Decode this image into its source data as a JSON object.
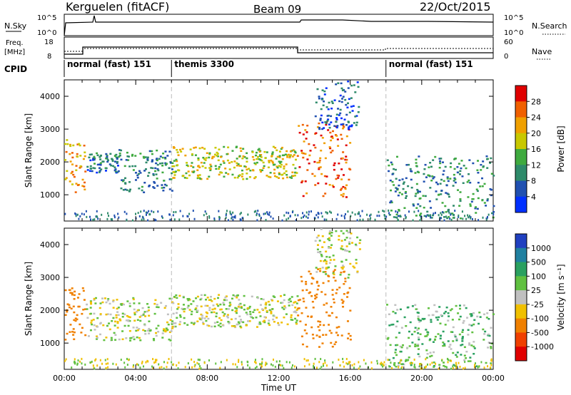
{
  "header": {
    "station": "Kerguelen (fitACF)",
    "beam": "Beam 09",
    "date": "22/Oct/2015"
  },
  "panel_labels": {
    "nsky": "N.Sky",
    "nsearch": "N.Search",
    "freq": "Freq.",
    "freq_unit": "[MHz]",
    "nave": "Nave",
    "cpid": "CPID"
  },
  "nsky_axis": {
    "ticks_left": [
      "10^5",
      "10^0"
    ],
    "ticks_right": [
      "10^5",
      "10^0"
    ]
  },
  "freq_axis": {
    "ticks_left": [
      "18",
      "8"
    ],
    "ticks_right": [
      "60",
      "0"
    ]
  },
  "cpid_segments": [
    {
      "label": "normal (fast) 151",
      "start_hour": 0,
      "end_hour": 6
    },
    {
      "label": "themis 3300",
      "start_hour": 6,
      "end_hour": 18
    },
    {
      "label": "normal (fast) 151",
      "start_hour": 18,
      "end_hour": 24
    }
  ],
  "chart_data": [
    {
      "type": "heatmap",
      "id": "power",
      "ylabel": "Slant Range [km]",
      "yticks": [
        1000,
        2000,
        3000,
        4000
      ],
      "ylim": [
        200,
        4500
      ],
      "colorbar_label": "Power [dB]",
      "colorbar_ticks": [
        "4",
        "8",
        "12",
        "16",
        "20",
        "24",
        "28"
      ],
      "colorbar_range": [
        0,
        30
      ],
      "colors": [
        "#0030ff",
        "#2050b0",
        "#2e8a6a",
        "#3faa3f",
        "#c8c800",
        "#f0a000",
        "#f06000",
        "#e00000"
      ],
      "regions": [
        {
          "t": [
            0.0,
            1.2
          ],
          "r": [
            1100,
            2700
          ],
          "level": 22
        },
        {
          "t": [
            1.2,
            3.0
          ],
          "r": [
            1700,
            2300
          ],
          "level": 8
        },
        {
          "t": [
            3.0,
            6.0
          ],
          "r": [
            1100,
            2400
          ],
          "level": 10
        },
        {
          "t": [
            6.0,
            13.0
          ],
          "r": [
            1500,
            2500
          ],
          "level": 18
        },
        {
          "t": [
            13.0,
            16.0
          ],
          "r": [
            900,
            3300
          ],
          "level": 26
        },
        {
          "t": [
            14.0,
            16.5
          ],
          "r": [
            3000,
            4500
          ],
          "level": 6
        },
        {
          "t": [
            18.0,
            24.0
          ],
          "r": [
            300,
            2200
          ],
          "level": 10
        }
      ]
    },
    {
      "type": "heatmap",
      "id": "velocity",
      "ylabel": "Slant Range [km]",
      "yticks": [
        1000,
        2000,
        3000,
        4000
      ],
      "ylim": [
        200,
        4500
      ],
      "colorbar_label": "Velocity [m s⁻¹]",
      "colorbar_ticks": [
        "1000",
        "500",
        "100",
        "25",
        "-25",
        "-100",
        "-500",
        "-1000"
      ],
      "colors": [
        "#2040c0",
        "#2080a0",
        "#2aa060",
        "#60c040",
        "#c0c0c0",
        "#f0c000",
        "#f08000",
        "#f04000",
        "#e00000"
      ],
      "regions": [
        {
          "t": [
            0.0,
            1.2
          ],
          "r": [
            1100,
            2700
          ],
          "level": -200
        },
        {
          "t": [
            1.2,
            6.0
          ],
          "r": [
            1100,
            2400
          ],
          "level": 0
        },
        {
          "t": [
            6.0,
            13.0
          ],
          "r": [
            1500,
            2500
          ],
          "level": 0
        },
        {
          "t": [
            13.0,
            16.0
          ],
          "r": [
            900,
            3300
          ],
          "level": -300
        },
        {
          "t": [
            14.0,
            16.5
          ],
          "r": [
            3000,
            4500
          ],
          "level": 0
        },
        {
          "t": [
            18.0,
            24.0
          ],
          "r": [
            300,
            2200
          ],
          "level": 80
        }
      ],
      "xlabel": "Time UT",
      "xticks": [
        "00:00",
        "04:00",
        "08:00",
        "12:00",
        "16:00",
        "20:00",
        "00:00"
      ]
    }
  ]
}
